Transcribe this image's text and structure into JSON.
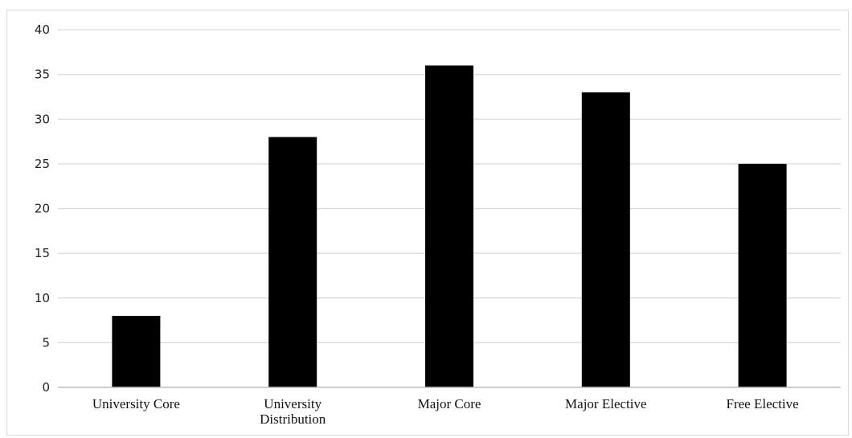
{
  "chart_data": {
    "type": "bar",
    "categories": [
      [
        "University Core"
      ],
      [
        "University",
        "Distribution"
      ],
      [
        "Major Core"
      ],
      [
        "Major Elective"
      ],
      [
        "Free Elective"
      ]
    ],
    "values": [
      8,
      28,
      36,
      33,
      25
    ],
    "y_ticks": [
      "0",
      "5",
      "10",
      "15",
      "20",
      "25",
      "30",
      "35",
      "40"
    ],
    "ylim": [
      0,
      40
    ],
    "grid": true,
    "legend": "none",
    "colors": {
      "bar": "#000000",
      "grid": "#d9d9d9",
      "axis": "#bfbfbf",
      "frame": "#d9d9d9"
    }
  }
}
